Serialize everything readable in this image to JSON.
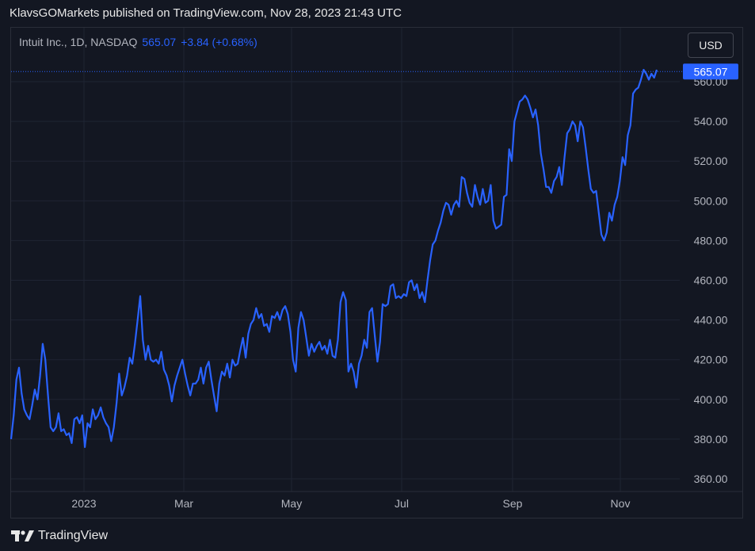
{
  "header": {
    "published_text": "KlavsGOMarkets published on TradingView.com, Nov 28, 2023 21:43 UTC"
  },
  "legend": {
    "symbol_text": "Intuit Inc., 1D, NASDAQ",
    "last_value": "565.07",
    "change_text": "+3.84 (+0.68%)"
  },
  "currency_button": {
    "label": "USD"
  },
  "last_price_label": "565.07",
  "footer": {
    "brand": "TradingView",
    "logo_icon": "tradingview-logo-icon"
  },
  "colors": {
    "background": "#131722",
    "line": "#2962ff",
    "grid": "#1f2433",
    "text": "#b2b5be",
    "accent": "#2962ff"
  },
  "chart_data": {
    "type": "line",
    "title": "Intuit Inc., 1D, NASDAQ",
    "ylim": [
      352,
      570
    ],
    "xlim": [
      0,
      300
    ],
    "y_ticks": [
      360,
      380,
      400,
      420,
      440,
      460,
      480,
      500,
      520,
      540,
      560
    ],
    "y_tick_labels": [
      "360.00",
      "380.00",
      "400.00",
      "420.00",
      "440.00",
      "460.00",
      "480.00",
      "500.00",
      "520.00",
      "540.00",
      "560.00"
    ],
    "x_ticks": [
      {
        "label": "2023",
        "x": 28
      },
      {
        "label": "Mar",
        "x": 73
      },
      {
        "label": "May",
        "x": 123
      },
      {
        "label": "Jul",
        "x": 173
      },
      {
        "label": "Sep",
        "x": 223
      },
      {
        "label": "Nov",
        "x": 273
      }
    ],
    "grid": true,
    "series": [
      {
        "values": [
          [
            0,
            380
          ],
          [
            1,
            392
          ],
          [
            2,
            410
          ],
          [
            3,
            416
          ],
          [
            4,
            403
          ],
          [
            5,
            395
          ],
          [
            6,
            392
          ],
          [
            7,
            390
          ],
          [
            8,
            397
          ],
          [
            9,
            405
          ],
          [
            10,
            400
          ],
          [
            11,
            412
          ],
          [
            12,
            428
          ],
          [
            13,
            420
          ],
          [
            14,
            402
          ],
          [
            15,
            386
          ],
          [
            16,
            384
          ],
          [
            17,
            386
          ],
          [
            18,
            393
          ],
          [
            19,
            384
          ],
          [
            20,
            385
          ],
          [
            21,
            382
          ],
          [
            22,
            383
          ],
          [
            23,
            378
          ],
          [
            24,
            390
          ],
          [
            25,
            391
          ],
          [
            26,
            388
          ],
          [
            27,
            392
          ],
          [
            28,
            376
          ],
          [
            29,
            388
          ],
          [
            30,
            386
          ],
          [
            31,
            395
          ],
          [
            32,
            390
          ],
          [
            33,
            392
          ],
          [
            34,
            396
          ],
          [
            35,
            391
          ],
          [
            36,
            388
          ],
          [
            37,
            386
          ],
          [
            38,
            379
          ],
          [
            39,
            386
          ],
          [
            40,
            398
          ],
          [
            41,
            413
          ],
          [
            42,
            402
          ],
          [
            43,
            406
          ],
          [
            44,
            412
          ],
          [
            45,
            421
          ],
          [
            46,
            418
          ],
          [
            47,
            428
          ],
          [
            48,
            440
          ],
          [
            49,
            452
          ],
          [
            50,
            430
          ],
          [
            51,
            420
          ],
          [
            52,
            427
          ],
          [
            53,
            420
          ],
          [
            54,
            419
          ],
          [
            55,
            420
          ],
          [
            56,
            418
          ],
          [
            57,
            424
          ],
          [
            58,
            415
          ],
          [
            59,
            412
          ],
          [
            60,
            407
          ],
          [
            61,
            399
          ],
          [
            62,
            407
          ],
          [
            63,
            412
          ],
          [
            64,
            416
          ],
          [
            65,
            420
          ],
          [
            66,
            413
          ],
          [
            67,
            407
          ],
          [
            68,
            402
          ],
          [
            69,
            408
          ],
          [
            70,
            408
          ],
          [
            71,
            410
          ],
          [
            72,
            416
          ],
          [
            73,
            408
          ],
          [
            74,
            416
          ],
          [
            75,
            419
          ],
          [
            76,
            410
          ],
          [
            77,
            402
          ],
          [
            78,
            394
          ],
          [
            79,
            408
          ],
          [
            80,
            414
          ],
          [
            81,
            412
          ],
          [
            82,
            418
          ],
          [
            83,
            411
          ],
          [
            84,
            420
          ],
          [
            85,
            417
          ],
          [
            86,
            418
          ],
          [
            87,
            425
          ],
          [
            88,
            431
          ],
          [
            89,
            421
          ],
          [
            90,
            433
          ],
          [
            91,
            438
          ],
          [
            92,
            440
          ],
          [
            93,
            446
          ],
          [
            94,
            441
          ],
          [
            95,
            443
          ],
          [
            96,
            437
          ],
          [
            97,
            438
          ],
          [
            98,
            434
          ],
          [
            99,
            442
          ],
          [
            100,
            441
          ],
          [
            101,
            444
          ],
          [
            102,
            440
          ],
          [
            103,
            445
          ],
          [
            104,
            447
          ],
          [
            105,
            443
          ],
          [
            106,
            434
          ],
          [
            107,
            420
          ],
          [
            108,
            414
          ],
          [
            109,
            436
          ],
          [
            110,
            444
          ],
          [
            111,
            440
          ],
          [
            112,
            431
          ],
          [
            113,
            422
          ],
          [
            114,
            428
          ],
          [
            115,
            424
          ],
          [
            116,
            427
          ],
          [
            117,
            429
          ],
          [
            118,
            425
          ],
          [
            119,
            427
          ],
          [
            120,
            423
          ],
          [
            121,
            430
          ],
          [
            122,
            422
          ],
          [
            123,
            421
          ],
          [
            124,
            430
          ],
          [
            125,
            449
          ],
          [
            126,
            454
          ],
          [
            127,
            450
          ],
          [
            128,
            414
          ],
          [
            129,
            418
          ],
          [
            130,
            414
          ],
          [
            131,
            406
          ],
          [
            132,
            418
          ],
          [
            133,
            422
          ],
          [
            134,
            430
          ],
          [
            135,
            426
          ],
          [
            136,
            444
          ],
          [
            137,
            446
          ],
          [
            138,
            432
          ],
          [
            139,
            419
          ],
          [
            140,
            429
          ],
          [
            141,
            448
          ],
          [
            142,
            447
          ],
          [
            143,
            448
          ],
          [
            144,
            457
          ],
          [
            145,
            458
          ],
          [
            146,
            451
          ],
          [
            147,
            452
          ],
          [
            148,
            451
          ],
          [
            149,
            453
          ],
          [
            150,
            452
          ],
          [
            151,
            459
          ],
          [
            152,
            460
          ],
          [
            153,
            455
          ],
          [
            154,
            458
          ],
          [
            155,
            451
          ],
          [
            156,
            454
          ],
          [
            157,
            449
          ],
          [
            158,
            460
          ],
          [
            159,
            470
          ],
          [
            160,
            478
          ],
          [
            161,
            480
          ],
          [
            162,
            485
          ],
          [
            163,
            489
          ],
          [
            164,
            495
          ],
          [
            165,
            499
          ],
          [
            166,
            498
          ],
          [
            167,
            493
          ],
          [
            168,
            498
          ],
          [
            169,
            500
          ],
          [
            170,
            497
          ],
          [
            171,
            512
          ],
          [
            172,
            511
          ],
          [
            173,
            504
          ],
          [
            174,
            499
          ],
          [
            175,
            497
          ],
          [
            176,
            508
          ],
          [
            177,
            502
          ],
          [
            178,
            498
          ],
          [
            179,
            506
          ],
          [
            180,
            499
          ],
          [
            181,
            500
          ],
          [
            182,
            508
          ],
          [
            183,
            490
          ],
          [
            184,
            486
          ],
          [
            185,
            487
          ],
          [
            186,
            488
          ],
          [
            187,
            502
          ],
          [
            188,
            503
          ],
          [
            189,
            526
          ],
          [
            190,
            520
          ],
          [
            191,
            540
          ],
          [
            192,
            545
          ],
          [
            193,
            550
          ],
          [
            194,
            551
          ],
          [
            195,
            553
          ],
          [
            196,
            551
          ],
          [
            197,
            547
          ],
          [
            198,
            542
          ],
          [
            199,
            546
          ],
          [
            200,
            538
          ],
          [
            201,
            524
          ],
          [
            202,
            516
          ],
          [
            203,
            507
          ],
          [
            204,
            507
          ],
          [
            205,
            504
          ],
          [
            206,
            510
          ],
          [
            207,
            512
          ],
          [
            208,
            517
          ],
          [
            209,
            508
          ],
          [
            210,
            522
          ],
          [
            211,
            534
          ],
          [
            212,
            536
          ],
          [
            213,
            540
          ],
          [
            214,
            538
          ],
          [
            215,
            530
          ],
          [
            216,
            540
          ],
          [
            217,
            537
          ],
          [
            218,
            527
          ],
          [
            219,
            516
          ],
          [
            220,
            506
          ],
          [
            221,
            504
          ],
          [
            222,
            505
          ],
          [
            223,
            494
          ],
          [
            224,
            483
          ],
          [
            225,
            480
          ],
          [
            226,
            484
          ],
          [
            227,
            494
          ],
          [
            228,
            490
          ],
          [
            229,
            498
          ],
          [
            230,
            502
          ],
          [
            231,
            510
          ],
          [
            232,
            522
          ],
          [
            233,
            518
          ],
          [
            234,
            533
          ],
          [
            235,
            538
          ],
          [
            236,
            554
          ],
          [
            237,
            556
          ],
          [
            238,
            557
          ],
          [
            239,
            561
          ],
          [
            240,
            566
          ],
          [
            241,
            564
          ],
          [
            242,
            561
          ],
          [
            243,
            564
          ],
          [
            244,
            562
          ],
          [
            245,
            566
          ]
        ]
      }
    ]
  }
}
